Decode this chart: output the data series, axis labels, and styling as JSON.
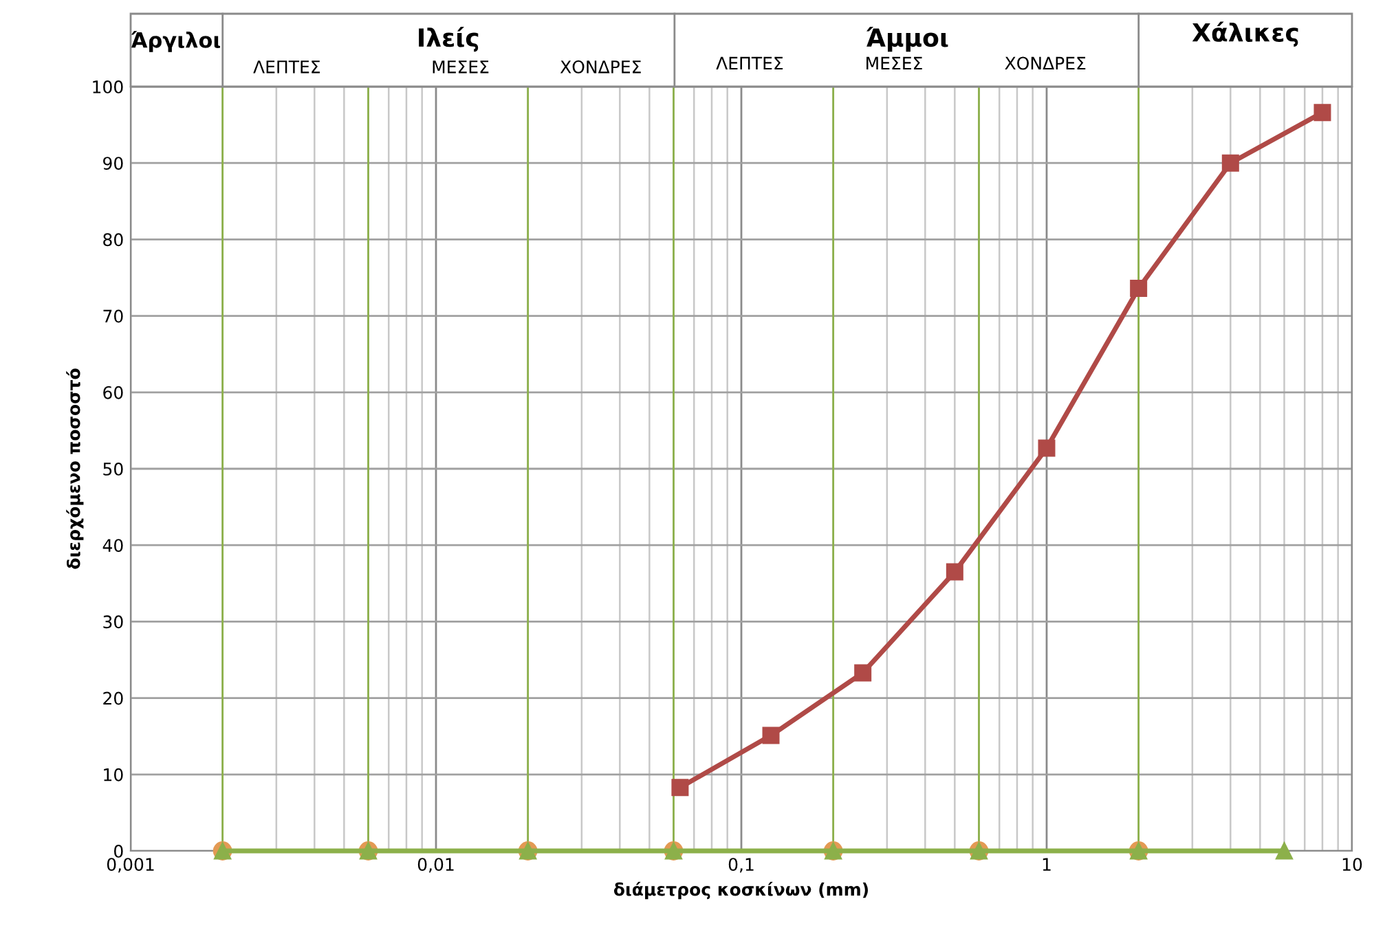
{
  "chart_data": {
    "type": "line",
    "xlabel": "διάμετρος κοσκίνων (mm)",
    "ylabel": "διερχόμενο ποσοστό",
    "log": "x",
    "xlim": [
      0.001,
      10
    ],
    "xticks": [
      {
        "value": 0.001,
        "label": "0,001"
      },
      {
        "value": 0.01,
        "label": "0,01"
      },
      {
        "value": 0.1,
        "label": "0,1"
      },
      1,
      10
    ],
    "ylim": [
      0,
      100
    ],
    "yticks": [
      0,
      10,
      20,
      30,
      40,
      50,
      60,
      70,
      80,
      90,
      100
    ],
    "grid": true,
    "line_style": "solid",
    "series": [
      {
        "color": "#b04a47",
        "marker": "square",
        "x": [
          0.063,
          0.125,
          0.25,
          0.5,
          1,
          2,
          4,
          8
        ],
        "values": [
          8.3,
          15.1,
          23.3,
          36.5,
          52.7,
          73.6,
          90.0,
          96.6
        ]
      },
      {
        "type": "scatter",
        "color": "#e39a54",
        "marker": "circle",
        "x": [
          0.002,
          0.006,
          0.02,
          0.06,
          0.2,
          0.6,
          2
        ],
        "values": [
          0,
          0,
          0,
          0,
          0,
          0,
          0
        ]
      },
      {
        "color": "#8cb04a",
        "marker": "triangle",
        "x": [
          0.002,
          0.006,
          0.02,
          0.06,
          0.2,
          0.6,
          2,
          6
        ],
        "values": [
          0,
          0,
          0,
          0,
          0,
          0,
          0,
          0
        ]
      }
    ],
    "ref_lines": [
      {
        "axis": "x",
        "value": 0.002,
        "color": "#8cb04a"
      },
      {
        "axis": "x",
        "value": 0.006,
        "color": "#8cb04a"
      },
      {
        "axis": "x",
        "value": 0.02,
        "color": "#8cb04a"
      },
      {
        "axis": "x",
        "value": 0.06,
        "color": "#8cb04a"
      },
      {
        "axis": "x",
        "value": 0.2,
        "color": "#8cb04a"
      },
      {
        "axis": "x",
        "value": 0.6,
        "color": "#8cb04a"
      },
      {
        "axis": "x",
        "value": 2,
        "color": "#8cb04a"
      }
    ],
    "annotations": [
      "Άργιλοι",
      "Ιλείς",
      "ΛΕΠΤΕΣ",
      "ΜΕΣΕΣ",
      "ΧΟΝΔΡΕΣ",
      "Άμμοι",
      "ΛΕΠΤΕΣ",
      "ΜΕΣΕΣ",
      "ΧΟΝΔΡΕΣ",
      "Χάλικες"
    ]
  }
}
